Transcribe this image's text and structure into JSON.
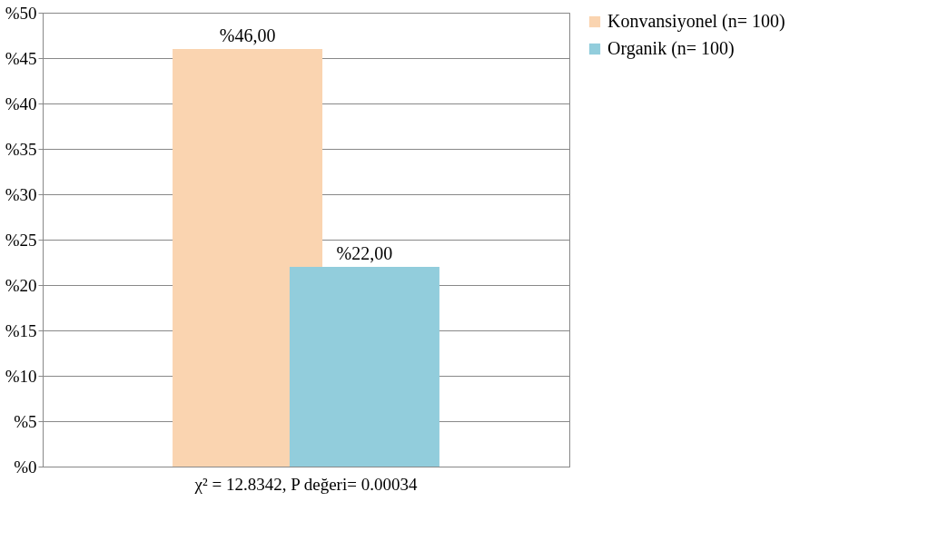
{
  "chart_data": {
    "type": "bar",
    "categories": [
      "χ² = 12.8342, P değeri=  0.00034"
    ],
    "series": [
      {
        "name": "Konvansiyonel (n= 100)",
        "color": "#fad4b0",
        "values": [
          46
        ],
        "value_labels": [
          "%46,00"
        ]
      },
      {
        "name": "Organik (n= 100)",
        "color": "#92cddc",
        "values": [
          22
        ],
        "value_labels": [
          "%22,00"
        ]
      }
    ],
    "ylim": [
      0,
      50
    ],
    "yticks": [
      {
        "value": 0,
        "label": "%0"
      },
      {
        "value": 5,
        "label": "%5"
      },
      {
        "value": 10,
        "label": "%10"
      },
      {
        "value": 15,
        "label": "%15"
      },
      {
        "value": 20,
        "label": "%20"
      },
      {
        "value": 25,
        "label": "%25"
      },
      {
        "value": 30,
        "label": "%30"
      },
      {
        "value": 35,
        "label": "%35"
      },
      {
        "value": 40,
        "label": "%40"
      },
      {
        "value": 45,
        "label": "%45"
      },
      {
        "value": 50,
        "label": "%50"
      }
    ],
    "grid": "y",
    "legend": "right"
  }
}
